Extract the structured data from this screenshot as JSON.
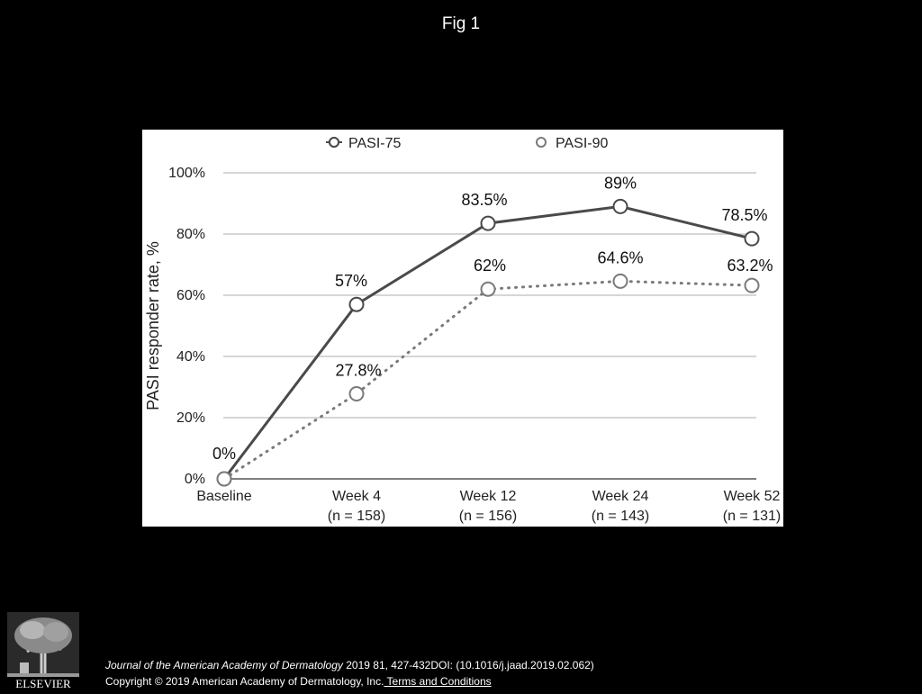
{
  "slide": {
    "title": "Fig 1"
  },
  "chart_data": {
    "type": "line",
    "ylabel": "PASI responder rate, %",
    "xlabel": "",
    "ylim": [
      0,
      100
    ],
    "yticks": [
      "0%",
      "20%",
      "40%",
      "60%",
      "80%",
      "100%"
    ],
    "grid": true,
    "legend_position": "top",
    "categories": [
      {
        "label": "Baseline",
        "n": ""
      },
      {
        "label": "Week 4",
        "n": "(n = 158)"
      },
      {
        "label": "Week 12",
        "n": "(n = 156)"
      },
      {
        "label": "Week 24",
        "n": "(n = 143)"
      },
      {
        "label": "Week 52",
        "n": "(n = 131)"
      }
    ],
    "series": [
      {
        "name": "PASI-75",
        "style": "solid",
        "color": "#4a4a4a",
        "values": [
          0,
          57,
          83.5,
          89,
          78.5
        ],
        "labels": [
          "0%",
          "57%",
          "83.5%",
          "89%",
          "78.5%"
        ]
      },
      {
        "name": "PASI-90",
        "style": "dotted",
        "color": "#7a7a7a",
        "values": [
          0,
          27.8,
          62,
          64.6,
          63.2
        ],
        "labels": [
          "",
          "27.8%",
          "62%",
          "64.6%",
          "63.2%"
        ]
      }
    ]
  },
  "footer": {
    "journal": "Journal of the American Academy of Dermatology",
    "citation": " 2019 81, 427-432DOI: (10.1016/j.jaad.2019.02.062)",
    "copyright": "Copyright © 2019 American Academy of Dermatology, Inc.",
    "terms_link": " Terms and Conditions",
    "publisher_logo": "ELSEVIER"
  }
}
